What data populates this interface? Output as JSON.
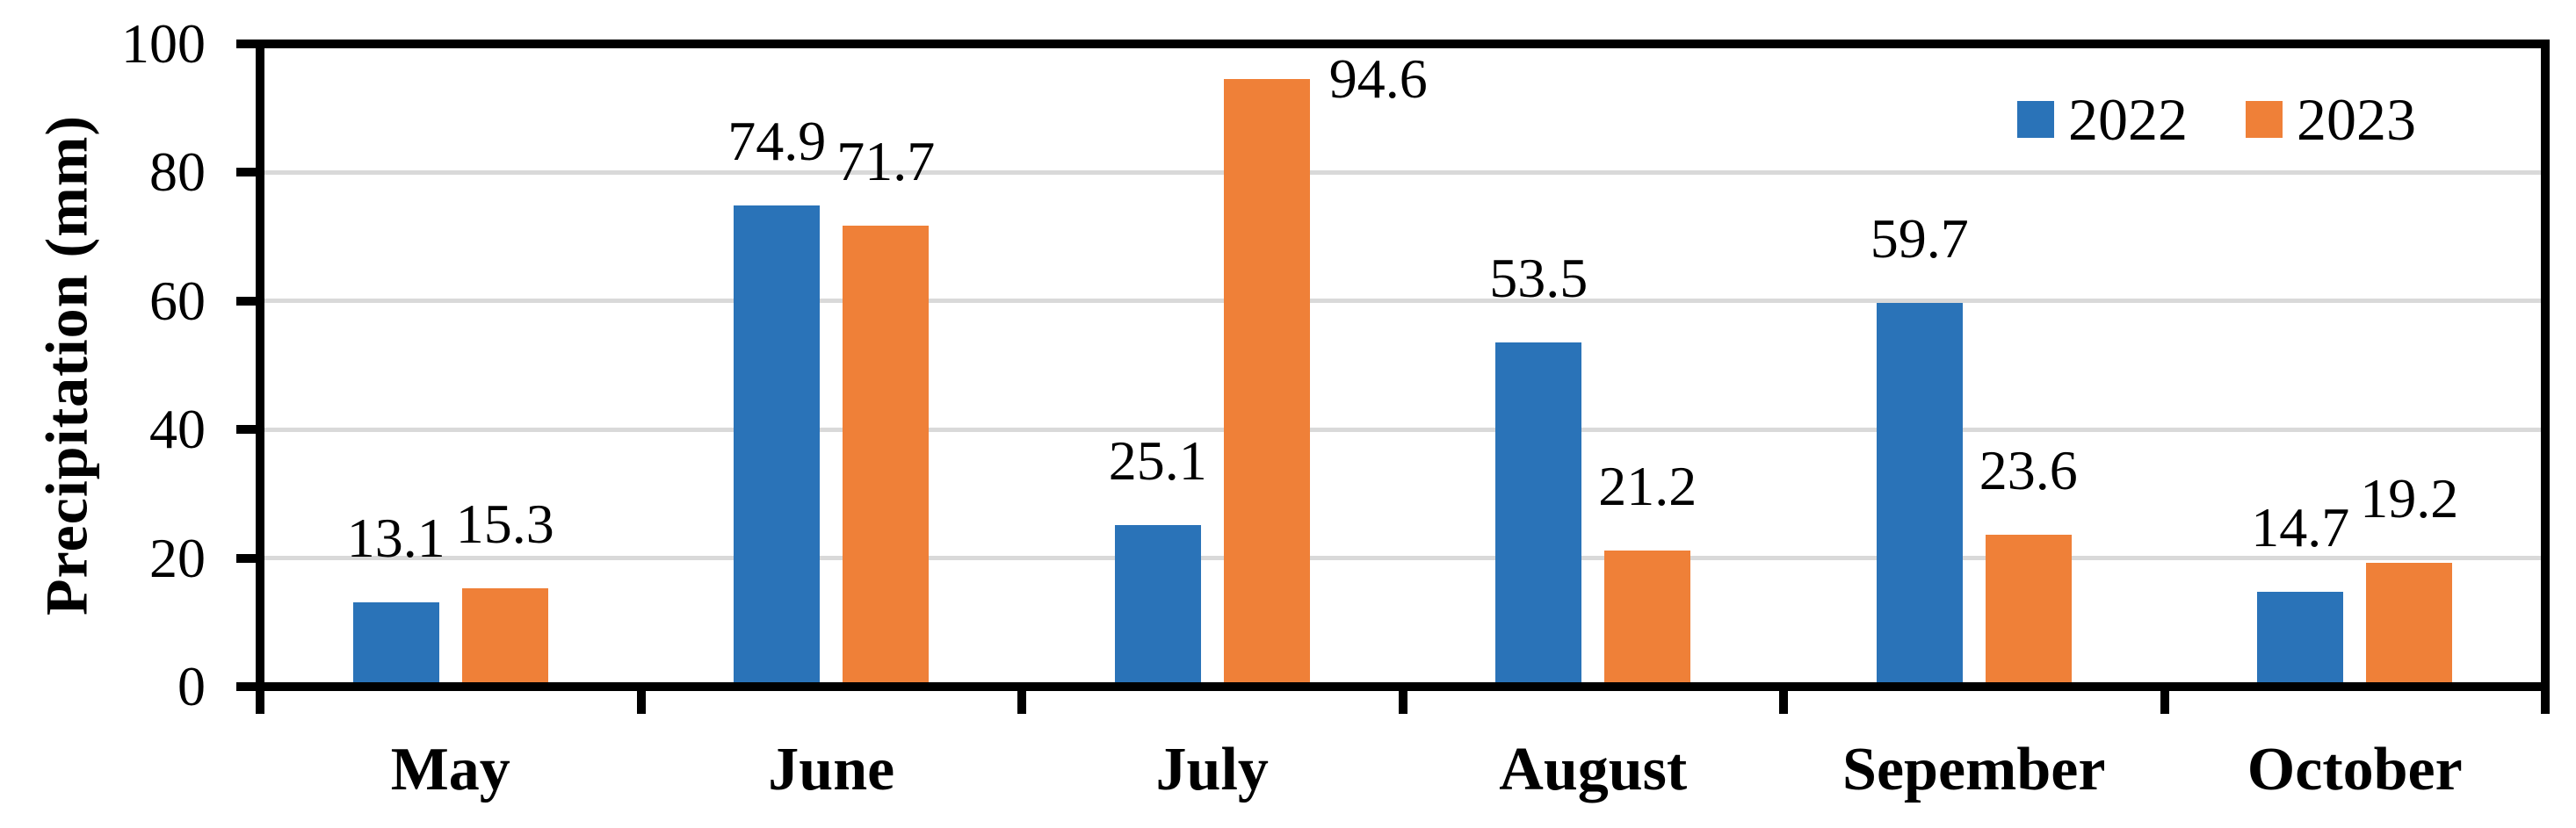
{
  "chart_data": {
    "type": "bar",
    "title": "",
    "xlabel": "",
    "ylabel": "Precipitation (mm)",
    "ylim": [
      0,
      100
    ],
    "yticks": [
      0,
      20,
      40,
      60,
      80,
      100
    ],
    "grid": true,
    "legend_position": "top-right",
    "categories": [
      "May",
      "June",
      "July",
      "August",
      "Sepember",
      "October"
    ],
    "series": [
      {
        "name": "2022",
        "color": "#2A73B8",
        "values": [
          13.1,
          74.9,
          25.1,
          53.5,
          59.7,
          14.7
        ]
      },
      {
        "name": "2023",
        "color": "#EF8038",
        "values": [
          15.3,
          71.7,
          94.6,
          21.2,
          23.6,
          19.2
        ]
      }
    ],
    "value_labels": {
      "2022": [
        "13.1",
        "74.9",
        "25.1",
        "53.5",
        "59.7",
        "14.7"
      ],
      "2023": [
        "15.3",
        "71.7",
        "94.6",
        "21.2",
        "23.6",
        "19.2"
      ]
    }
  },
  "colors": {
    "axis": "#000000",
    "gridline": "#D9D9D9",
    "background": "#FFFFFF",
    "text": "#000000"
  }
}
